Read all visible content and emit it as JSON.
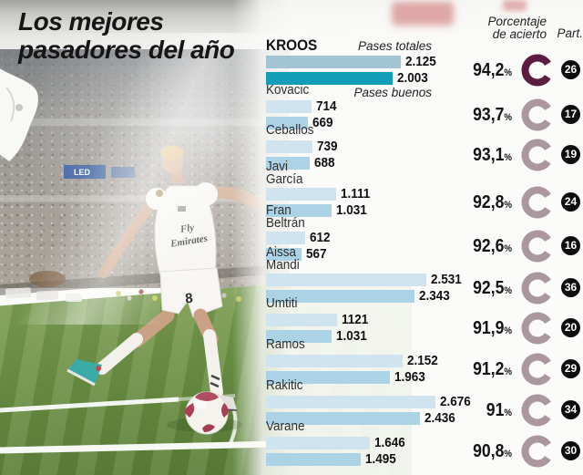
{
  "title": {
    "line1": "Los mejores",
    "line2": "pasadores del año"
  },
  "photo": {
    "jersey_sponsor": [
      "Fly",
      "Emirates"
    ],
    "shorts_number": "8",
    "led_board": "LED"
  },
  "colors": {
    "bar_total": "#cfe4ef",
    "bar_good": "#abd2e5",
    "bar_total_highlight": "#a3c4d5",
    "bar_good_highlight": "#139eb8",
    "donut": "#aa97a0",
    "donut_highlight": "#5c1c42",
    "badge": "#0d0d0d"
  },
  "chart_data": {
    "type": "bar",
    "title": "Los mejores pasadores del año",
    "series_labels": [
      "Pases totales",
      "Pases buenos"
    ],
    "headers": {
      "pct": [
        "Porcentaje",
        "de acierto"
      ],
      "part": "Part."
    },
    "percent_sign": "%",
    "players": [
      {
        "name": "KROOS",
        "name_lines": [
          "KROOS"
        ],
        "totales": 2125,
        "totales_label": "2.125",
        "buenos": 2003,
        "buenos_label": "2.003",
        "pct": "94,2",
        "part": "26",
        "highlight": true
      },
      {
        "name": "Kovacic",
        "name_lines": [
          "Kovacic"
        ],
        "totales": 714,
        "totales_label": "714",
        "buenos": 669,
        "buenos_label": "669",
        "pct": "93,7",
        "part": "17",
        "highlight": false
      },
      {
        "name": "Ceballos",
        "name_lines": [
          "Ceballos"
        ],
        "totales": 739,
        "totales_label": "739",
        "buenos": 688,
        "buenos_label": "688",
        "pct": "93,1",
        "part": "19",
        "highlight": false
      },
      {
        "name": "Javi García",
        "name_lines": [
          "Javi",
          "García"
        ],
        "totales": 1111,
        "totales_label": "1.111",
        "buenos": 1031,
        "buenos_label": "1.031",
        "pct": "92,8",
        "part": "24",
        "highlight": false
      },
      {
        "name": "Fran Beltrán",
        "name_lines": [
          "Fran",
          "Beltrán"
        ],
        "totales": 612,
        "totales_label": "612",
        "buenos": 567,
        "buenos_label": "567",
        "pct": "92,6",
        "part": "16",
        "highlight": false
      },
      {
        "name": "Aissa Mandi",
        "name_lines": [
          "Aissa",
          "Mandi"
        ],
        "totales": 2531,
        "totales_label": "2.531",
        "buenos": 2343,
        "buenos_label": "2.343",
        "pct": "92,5",
        "part": "36",
        "highlight": false
      },
      {
        "name": "Umtiti",
        "name_lines": [
          "Umtiti"
        ],
        "totales": 1121,
        "totales_label": "1121",
        "buenos": 1031,
        "buenos_label": "1.031",
        "pct": "91,9",
        "part": "20",
        "highlight": false
      },
      {
        "name": "Ramos",
        "name_lines": [
          "Ramos"
        ],
        "totales": 2152,
        "totales_label": "2.152",
        "buenos": 1963,
        "buenos_label": "1.963",
        "pct": "91,2",
        "part": "29",
        "highlight": false
      },
      {
        "name": "Rakitic",
        "name_lines": [
          "Rakitic"
        ],
        "totales": 2676,
        "totales_label": "2.676",
        "buenos": 2436,
        "buenos_label": "2.436",
        "pct": "91",
        "part": "34",
        "highlight": false
      },
      {
        "name": "Varane",
        "name_lines": [
          "Varane"
        ],
        "totales": 1646,
        "totales_label": "1.646",
        "buenos": 1495,
        "buenos_label": "1.495",
        "pct": "90,8",
        "part": "30",
        "highlight": false
      }
    ]
  }
}
